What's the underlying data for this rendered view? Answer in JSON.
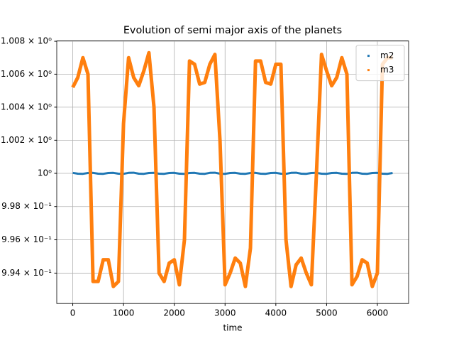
{
  "chart_data": {
    "type": "scatter",
    "title": "Evolution of semi major axis of the planets",
    "x_label": "time",
    "x": [
      0,
      100,
      200,
      300,
      400,
      500,
      600,
      700,
      800,
      900,
      1000,
      1100,
      1200,
      1300,
      1400,
      1500,
      1600,
      1700,
      1800,
      1900,
      2000,
      2100,
      2200,
      2300,
      2400,
      2500,
      2600,
      2700,
      2800,
      2900,
      3000,
      3100,
      3200,
      3300,
      3400,
      3500,
      3600,
      3700,
      3800,
      3900,
      4000,
      4100,
      4200,
      4300,
      4400,
      4500,
      4600,
      4700,
      4800,
      4900,
      5000,
      5100,
      5200,
      5300,
      5400,
      5500,
      5600,
      5700,
      5800,
      5900,
      6000,
      6100,
      6200,
      6300
    ],
    "series": [
      {
        "name": "m2",
        "color": "#1f77b4",
        "values": [
          1.00003,
          0.99998,
          0.99997,
          1.00002,
          1.00003,
          0.99998,
          0.99997,
          1.00002,
          1.00003,
          0.99998,
          0.99997,
          1.00003,
          1.00004,
          0.99998,
          0.99997,
          1.00002,
          1.00003,
          0.99998,
          0.99997,
          1.00002,
          1.00003,
          0.99998,
          0.99997,
          1.00002,
          1.00003,
          0.99998,
          0.99997,
          1.00003,
          1.00004,
          0.99998,
          0.99997,
          1.00002,
          1.00003,
          0.99998,
          0.99997,
          1.00002,
          1.00003,
          0.99998,
          0.99997,
          1.00002,
          1.00003,
          0.99998,
          0.99997,
          1.00003,
          1.00004,
          0.99998,
          0.99997,
          1.00002,
          1.00003,
          0.99998,
          0.99997,
          1.00002,
          1.00003,
          0.99998,
          0.99997,
          1.00003,
          1.00004,
          0.99998,
          0.99997,
          1.00002,
          1.00003,
          0.99998,
          0.99997,
          1.00002
        ]
      },
      {
        "name": "m3",
        "color": "#ff7f0e",
        "values": [
          1.0052,
          1.0058,
          1.007,
          1.006,
          0.9935,
          0.9935,
          0.9948,
          0.9948,
          0.9932,
          0.9935,
          1.003,
          1.007,
          1.0058,
          1.0053,
          1.0062,
          1.0073,
          1.004,
          0.994,
          0.9935,
          0.9946,
          0.9948,
          0.9933,
          0.996,
          1.0068,
          1.0066,
          1.0054,
          1.0055,
          1.0066,
          1.0072,
          1.002,
          0.9933,
          0.994,
          0.9949,
          0.9946,
          0.9932,
          0.9955,
          1.0068,
          1.0068,
          1.0055,
          1.0054,
          1.0066,
          1.0066,
          0.996,
          0.9932,
          0.9945,
          0.9949,
          0.994,
          0.9933,
          1.0,
          1.0072,
          1.0062,
          1.0053,
          1.0058,
          1.007,
          1.006,
          0.9933,
          0.9938,
          0.9948,
          0.9946,
          0.9932,
          0.994,
          1.0066,
          1.007,
          1.007
        ]
      }
    ],
    "xlim": [
      -315,
      6615
    ],
    "xticks": [
      0,
      1000,
      2000,
      3000,
      4000,
      5000,
      6000
    ],
    "ylim": [
      0.99218,
      1.00802
    ],
    "y_scale": "log",
    "yticks": [
      {
        "value": 0.994,
        "label": "9.94 × 10⁻¹"
      },
      {
        "value": 0.996,
        "label": "9.96 × 10⁻¹"
      },
      {
        "value": 0.998,
        "label": "9.98 × 10⁻¹"
      },
      {
        "value": 1.0,
        "label": "10⁰"
      },
      {
        "value": 1.002,
        "label": "1.002 × 10⁰"
      },
      {
        "value": 1.004,
        "label": "1.004 × 10⁰"
      },
      {
        "value": 1.006,
        "label": "1.006 × 10⁰"
      },
      {
        "value": 1.008,
        "label": "1.008 × 10⁰"
      }
    ],
    "grid": true,
    "legend": "upper right"
  }
}
